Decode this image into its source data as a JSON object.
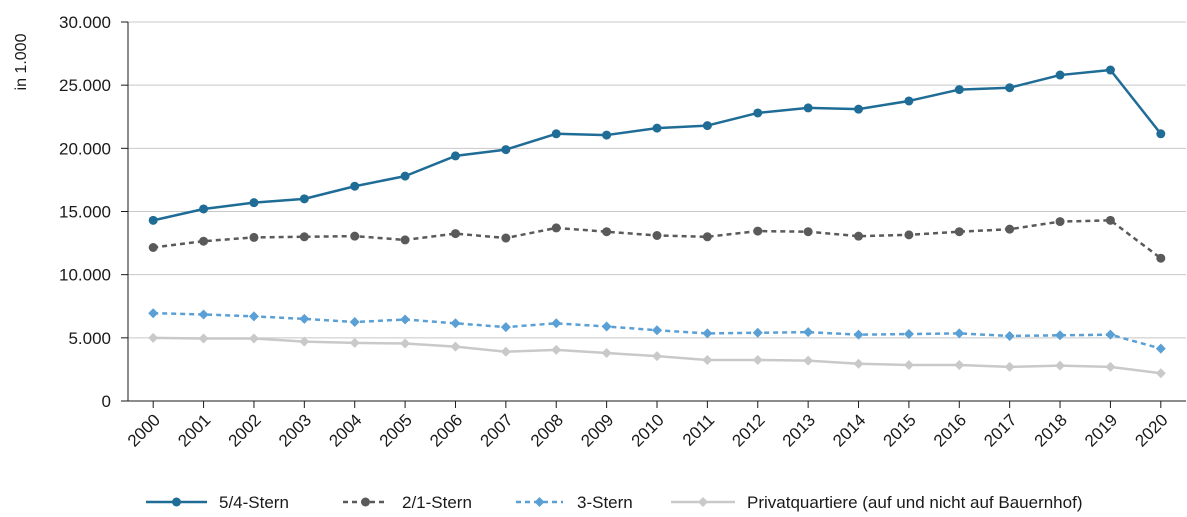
{
  "chart_data": {
    "type": "line",
    "ylabel": "in 1.000",
    "ylim": [
      0,
      30000
    ],
    "yticks": [
      0,
      5000,
      10000,
      15000,
      20000,
      25000,
      30000
    ],
    "ytick_labels": [
      "0",
      "5.000",
      "10.000",
      "15.000",
      "20.000",
      "25.000",
      "30.000"
    ],
    "grid": "horizontal",
    "legend": "bottom",
    "categories": [
      "2000",
      "2001",
      "2002",
      "2003",
      "2004",
      "2005",
      "2006",
      "2007",
      "2008",
      "2009",
      "2010",
      "2011",
      "2012",
      "2013",
      "2014",
      "2015",
      "2016",
      "2017",
      "2018",
      "2019",
      "2020"
    ],
    "series": [
      {
        "name": "5/4-Stern",
        "color": "#1f6c96",
        "dash": "solid",
        "marker": "circle",
        "values": [
          14300,
          15200,
          15700,
          16000,
          17000,
          17800,
          19400,
          19900,
          21150,
          21050,
          21600,
          21800,
          22800,
          23200,
          23100,
          23750,
          24650,
          24800,
          25800,
          26200,
          21150
        ]
      },
      {
        "name": "2/1-Stern",
        "color": "#5a5a5a",
        "dash": "dashed",
        "marker": "circle",
        "values": [
          12150,
          12650,
          12950,
          13000,
          13050,
          12750,
          13250,
          12900,
          13700,
          13400,
          13100,
          13000,
          13450,
          13400,
          13050,
          13150,
          13400,
          13600,
          14200,
          14300,
          11300
        ]
      },
      {
        "name": "3-Stern",
        "color": "#5aa0d4",
        "dash": "dashed",
        "marker": "diamond",
        "values": [
          6950,
          6850,
          6700,
          6500,
          6250,
          6450,
          6150,
          5850,
          6150,
          5900,
          5600,
          5350,
          5400,
          5450,
          5250,
          5300,
          5350,
          5150,
          5200,
          5250,
          4150
        ]
      },
      {
        "name": "Privatquartiere (auf und nicht auf Bauernhof)",
        "color": "#c9c9c9",
        "dash": "solid",
        "marker": "diamond",
        "values": [
          5000,
          4950,
          4950,
          4700,
          4600,
          4550,
          4300,
          3900,
          4050,
          3800,
          3550,
          3250,
          3250,
          3200,
          2950,
          2850,
          2850,
          2700,
          2800,
          2700,
          2200
        ]
      }
    ]
  }
}
